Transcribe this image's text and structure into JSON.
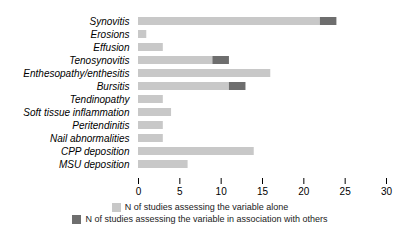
{
  "chart_data": {
    "type": "bar",
    "orientation": "horizontal",
    "stacked": true,
    "categories": [
      "Synovitis",
      "Erosions",
      "Effusion",
      "Tenosynovitis",
      "Enthesopathy/enthesitis",
      "Bursitis",
      "Tendinopathy",
      "Soft tissue inflammation",
      "Peritendinitis",
      "Nail abnormalities",
      "CPP deposition",
      "MSU deposition"
    ],
    "series": [
      {
        "name": "N of studies assessing the variable alone",
        "color": "#c8c8c8",
        "values": [
          22,
          1,
          3,
          9,
          16,
          11,
          3,
          4,
          3,
          3,
          14,
          6
        ]
      },
      {
        "name": "N of studies assessing the variable in association with others",
        "color": "#6e6e6e",
        "values": [
          2,
          0,
          0,
          2,
          0,
          2,
          0,
          0,
          0,
          0,
          0,
          0
        ]
      }
    ],
    "xlim": [
      0,
      30
    ],
    "xticks": [
      0,
      5,
      10,
      15,
      20,
      25,
      30
    ],
    "grid": false,
    "legend": "bottom"
  }
}
